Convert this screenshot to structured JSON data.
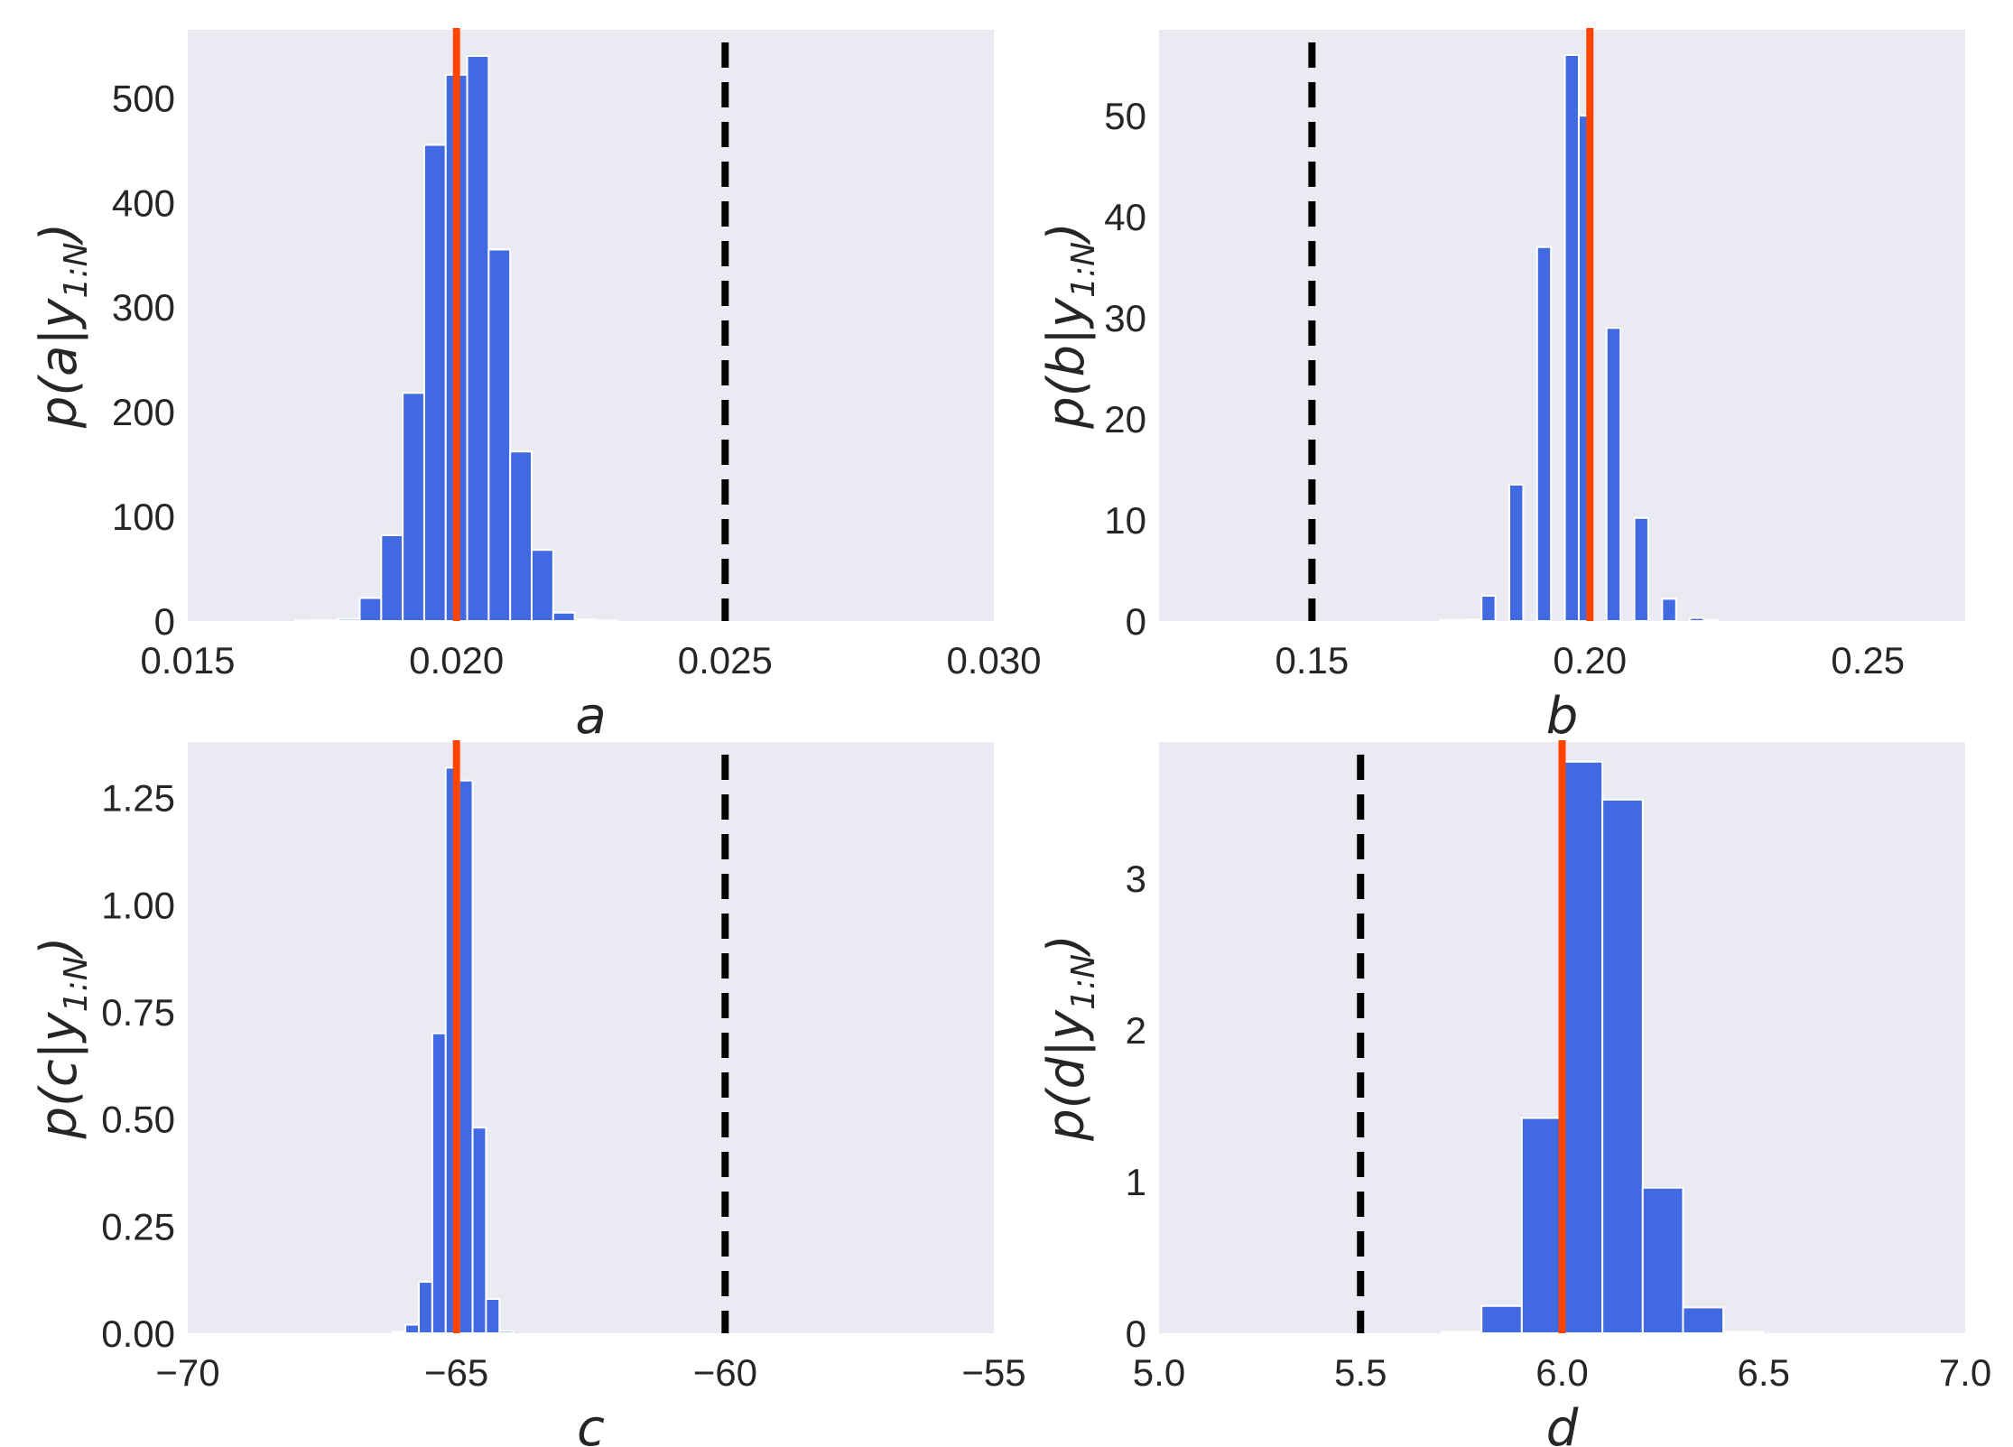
{
  "colors": {
    "background": "#EAEAF2",
    "bar": "#4169E1",
    "bar_edge": "#FFFFFF",
    "estimate_line": "#FF4500",
    "initial_line": "#000000",
    "text": "#262626"
  },
  "chart_data": [
    {
      "type": "bar",
      "subplot": "top-left",
      "xlabel": "a",
      "ylabel": {
        "prefix": "p(a|y",
        "sub": "1:N",
        "suffix": ")"
      },
      "xlim": [
        0.015,
        0.03
      ],
      "ylim": [
        0,
        565
      ],
      "xticks": [
        0.015,
        0.02,
        0.025,
        0.03
      ],
      "xtick_labels": [
        "0.015",
        "0.020",
        "0.025",
        "0.030"
      ],
      "yticks": [
        0,
        100,
        200,
        300,
        400,
        500
      ],
      "ytick_labels": [
        "0",
        "100",
        "200",
        "300",
        "400",
        "500"
      ],
      "bin_edges": [
        0.017,
        0.0174,
        0.0178,
        0.0182,
        0.0186,
        0.019,
        0.0194,
        0.0198,
        0.0202,
        0.0206,
        0.021,
        0.0214,
        0.0218,
        0.0222,
        0.0226,
        0.023
      ],
      "counts": [
        0.5,
        0.8,
        2,
        22,
        82,
        218,
        455,
        522,
        540,
        355,
        162,
        68,
        8,
        1.5,
        0.5
      ],
      "true_value": 0.02,
      "initial_value": 0.025
    },
    {
      "type": "bar",
      "subplot": "top-right",
      "xlabel": "b",
      "ylabel": {
        "prefix": "p(b|y",
        "sub": "1:N",
        "suffix": ")"
      },
      "xlim": [
        0.1225,
        0.2675
      ],
      "ylim": [
        0,
        58.5
      ],
      "xticks": [
        0.15,
        0.2,
        0.25
      ],
      "xtick_labels": [
        "0.15",
        "0.20",
        "0.25"
      ],
      "yticks": [
        0,
        10,
        20,
        30,
        40,
        50
      ],
      "ytick_labels": [
        "0",
        "10",
        "20",
        "30",
        "40",
        "50"
      ],
      "bin_edges": [
        0.173,
        0.1755,
        0.178,
        0.1805,
        0.183,
        0.1855,
        0.188,
        0.1905,
        0.193,
        0.1955,
        0.198,
        0.2005,
        0.203,
        0.2055,
        0.208,
        0.2105,
        0.213,
        0.2155,
        0.218,
        0.2205,
        0.223,
        0.2255
      ],
      "counts": [
        0.1,
        0.1,
        0.15,
        2.5,
        0,
        13.5,
        0,
        37,
        0,
        56,
        50,
        0,
        29,
        0,
        10.2,
        0,
        2.2,
        0,
        0.3,
        0.1,
        0
      ],
      "true_value": 0.2,
      "initial_value": 0.15
    },
    {
      "type": "bar",
      "subplot": "bottom-left",
      "xlabel": "c",
      "ylabel": {
        "prefix": "p(c|y",
        "sub": "1:N",
        "suffix": ")"
      },
      "xlim": [
        -70,
        -55
      ],
      "ylim": [
        0,
        1.38
      ],
      "xticks": [
        -70,
        -65,
        -60,
        -55
      ],
      "xtick_labels": [
        "−70",
        "−65",
        "−60",
        "−55"
      ],
      "yticks": [
        0,
        0.25,
        0.5,
        0.75,
        1.0,
        1.25
      ],
      "ytick_labels": [
        "0.00",
        "0.25",
        "0.50",
        "0.75",
        "1.00",
        "1.25"
      ],
      "bin_edges": [
        -66.2,
        -65.95,
        -65.7,
        -65.45,
        -65.2,
        -64.95,
        -64.7,
        -64.45,
        -64.2,
        -63.95
      ],
      "counts": [
        0.003,
        0.02,
        0.12,
        0.7,
        1.32,
        1.29,
        0.48,
        0.08,
        0.005
      ],
      "true_value": -65,
      "initial_value": -60
    },
    {
      "type": "bar",
      "subplot": "bottom-right",
      "xlabel": "d",
      "ylabel": {
        "prefix": "p(d|y",
        "sub": "1:N",
        "suffix": ")"
      },
      "xlim": [
        5.0,
        7.0
      ],
      "ylim": [
        0,
        3.9
      ],
      "xticks": [
        5.0,
        5.5,
        6.0,
        6.5,
        7.0
      ],
      "xtick_labels": [
        "5.0",
        "5.5",
        "6.0",
        "6.5",
        "7.0"
      ],
      "yticks": [
        0,
        1,
        2,
        3
      ],
      "ytick_labels": [
        "0",
        "1",
        "2",
        "3"
      ],
      "bin_edges": [
        5.7,
        5.8,
        5.9,
        6.0,
        6.1,
        6.2,
        6.3,
        6.4,
        6.5
      ],
      "counts": [
        0.01,
        0.18,
        1.42,
        3.77,
        3.52,
        0.96,
        0.17,
        0.01
      ],
      "true_value": 6.0,
      "initial_value": 5.5
    }
  ]
}
